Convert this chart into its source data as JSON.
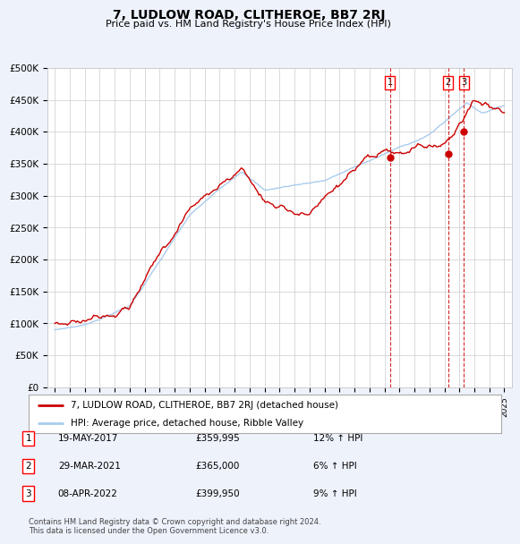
{
  "title": "7, LUDLOW ROAD, CLITHEROE, BB7 2RJ",
  "subtitle": "Price paid vs. HM Land Registry's House Price Index (HPI)",
  "ylabel_ticks": [
    "£0",
    "£50K",
    "£100K",
    "£150K",
    "£200K",
    "£250K",
    "£300K",
    "£350K",
    "£400K",
    "£450K",
    "£500K"
  ],
  "ytick_values": [
    0,
    50000,
    100000,
    150000,
    200000,
    250000,
    300000,
    350000,
    400000,
    450000,
    500000
  ],
  "ylim": [
    0,
    500000
  ],
  "xlim_start": 1994.5,
  "xlim_end": 2025.5,
  "background_color": "#eef2fb",
  "plot_bg_color": "#ffffff",
  "red_line_color": "#cc0000",
  "blue_line_color": "#aaccee",
  "grid_color": "#cccccc",
  "legend_label_red": "7, LUDLOW ROAD, CLITHEROE, BB7 2RJ (detached house)",
  "legend_label_blue": "HPI: Average price, detached house, Ribble Valley",
  "sale1_date": "19-MAY-2017",
  "sale1_price": "£359,995",
  "sale1_hpi": "12% ↑ HPI",
  "sale1_x": 2017.38,
  "sale1_y": 359995,
  "sale2_date": "29-MAR-2021",
  "sale2_price": "£365,000",
  "sale2_hpi": "6% ↑ HPI",
  "sale2_x": 2021.25,
  "sale2_y": 365000,
  "sale3_date": "08-APR-2022",
  "sale3_price": "£399,950",
  "sale3_hpi": "9% ↑ HPI",
  "sale3_x": 2022.29,
  "sale3_y": 399950,
  "footer": "Contains HM Land Registry data © Crown copyright and database right 2024.\nThis data is licensed under the Open Government Licence v3.0."
}
